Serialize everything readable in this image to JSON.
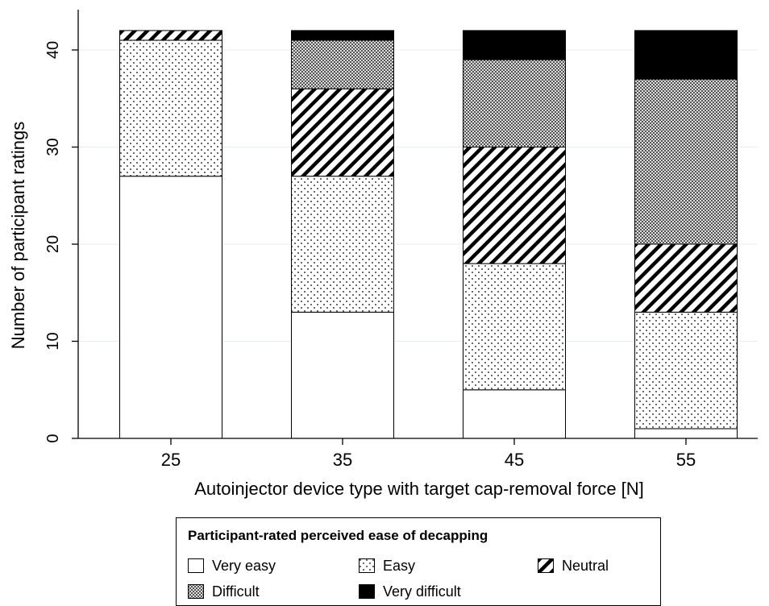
{
  "chart_data": {
    "type": "bar",
    "stacked": true,
    "categories": [
      "25",
      "35",
      "45",
      "55"
    ],
    "series": [
      {
        "name": "Very easy",
        "values": [
          27,
          13,
          5,
          1
        ],
        "pattern": "blank"
      },
      {
        "name": "Easy",
        "values": [
          14,
          14,
          13,
          12
        ],
        "pattern": "dots"
      },
      {
        "name": "Neutral",
        "values": [
          1,
          9,
          12,
          7
        ],
        "pattern": "diagonal-stripes"
      },
      {
        "name": "Difficult",
        "values": [
          0,
          5,
          9,
          17
        ],
        "pattern": "crosshatch"
      },
      {
        "name": "Very difficult",
        "values": [
          0,
          1,
          3,
          5
        ],
        "pattern": "solid-black"
      }
    ],
    "xlabel": "Autoinjector device type with target cap-removal force [N]",
    "ylabel": "Number of participant ratings",
    "ylim": [
      0,
      42
    ],
    "yticks": [
      0,
      10,
      20,
      30,
      40
    ],
    "grid": true,
    "legend_title": "Participant-rated perceived ease of decapping",
    "legend_position": "bottom"
  },
  "colors": {
    "bar_outline": "#000000",
    "grid": "#e9eef1",
    "background": "#ffffff"
  }
}
